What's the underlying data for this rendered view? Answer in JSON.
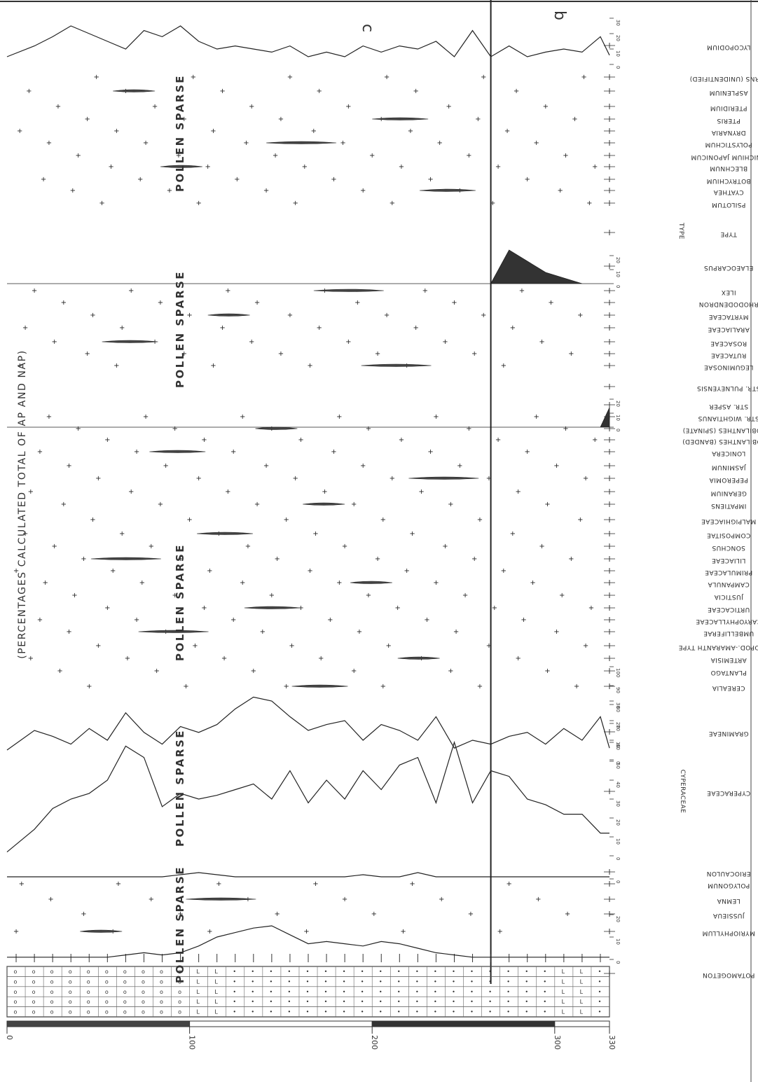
{
  "chart_data": {
    "type": "area",
    "title": "(PERCENTAGES CALCULATED TOTAL OF AP AND NAP)",
    "xlabel": "",
    "ylabel": "",
    "orientation": "rotated 90 degrees; depth axis runs along the bottom",
    "depth_axis": {
      "ticks": [
        "0",
        "100",
        "200",
        "300",
        "330"
      ],
      "range": [
        0,
        330
      ]
    },
    "zones": [
      "c",
      "b"
    ],
    "group_labels": [
      "POLLEN SPARSE",
      "POLLEN SPARSE",
      "POLLEN SPARSE",
      "POLLEN SPARSE",
      "POLLEN SPARSE",
      "TYPE",
      "CYPERACEAE"
    ],
    "depths": [
      0,
      15,
      25,
      35,
      45,
      55,
      65,
      75,
      85,
      95,
      105,
      115,
      125,
      135,
      145,
      155,
      165,
      175,
      185,
      195,
      205,
      215,
      225,
      235,
      245,
      255,
      265,
      275,
      285,
      295,
      305,
      315,
      325,
      330
    ],
    "series": [
      {
        "name": "POTAMOGETON",
        "scale_ticks": [
          "0",
          "10",
          "20"
        ],
        "values": [
          1,
          1,
          1,
          1,
          1,
          1,
          2,
          3,
          2,
          3,
          6,
          10,
          12,
          14,
          15,
          11,
          7,
          8,
          7,
          6,
          8,
          7,
          5,
          3,
          2,
          1,
          1,
          1,
          1,
          1,
          1,
          1,
          1,
          1
        ]
      },
      {
        "name": "ERIOCAULON",
        "scale_ticks": [
          "0"
        ],
        "values": [
          1,
          1,
          1,
          1,
          1,
          1,
          1,
          1,
          1,
          2,
          3,
          2,
          1,
          1,
          1,
          1,
          1,
          1,
          1,
          2,
          1,
          1,
          3,
          1,
          1,
          1,
          1,
          1,
          1,
          1,
          1,
          1,
          1,
          1
        ]
      },
      {
        "name": "CYPERACEAE",
        "scale_ticks": [
          "0",
          "10",
          "20",
          "30",
          "40",
          "50",
          "60",
          "70",
          "80",
          "90",
          "100"
        ],
        "values": [
          2,
          14,
          25,
          30,
          33,
          40,
          58,
          52,
          26,
          33,
          30,
          32,
          35,
          38,
          30,
          45,
          28,
          40,
          30,
          45,
          35,
          48,
          52,
          28,
          60,
          28,
          45,
          42,
          30,
          27,
          22,
          22,
          12,
          12
        ]
      },
      {
        "name": "GRAMINEAE",
        "scale_ticks": [
          "0",
          "10",
          "20",
          "30"
        ],
        "values": [
          5,
          15,
          12,
          8,
          16,
          10,
          24,
          14,
          8,
          17,
          14,
          18,
          26,
          32,
          30,
          22,
          15,
          18,
          20,
          10,
          18,
          15,
          10,
          22,
          6,
          10,
          8,
          12,
          14,
          8,
          16,
          10,
          22,
          6
        ]
      },
      {
        "name": "LYCOPODIUM",
        "scale_ticks": [
          "0",
          "10",
          "20",
          "30"
        ],
        "values": [
          5,
          12,
          18,
          25,
          20,
          15,
          10,
          22,
          18,
          25,
          15,
          10,
          12,
          10,
          8,
          12,
          5,
          8,
          5,
          12,
          8,
          12,
          10,
          15,
          5,
          22,
          5,
          12,
          5,
          8,
          10,
          8,
          18,
          6
        ]
      },
      {
        "name": "STR. ASPER",
        "scale_ticks": [
          "0",
          "10",
          "20"
        ],
        "values": [
          0,
          0,
          0,
          0,
          0,
          0,
          0,
          0,
          0,
          0,
          0,
          0,
          0,
          0,
          0,
          0,
          0,
          0,
          0,
          0,
          0,
          0,
          0,
          0,
          0,
          0,
          0,
          0,
          0,
          0,
          0,
          0,
          0,
          14
        ]
      },
      {
        "name": "ELAEOCARPUS",
        "scale_ticks": [
          "0",
          "10",
          "20"
        ],
        "values": [
          0,
          0,
          0,
          0,
          0,
          0,
          0,
          0,
          0,
          0,
          0,
          0,
          0,
          0,
          0,
          0,
          0,
          0,
          0,
          0,
          0,
          0,
          0,
          0,
          0,
          0,
          0,
          24,
          16,
          8,
          4,
          0,
          0,
          0
        ]
      }
    ],
    "taxa": [
      "POTAMOGETON",
      "MYRIOPHYLLUM",
      "JUSSIEUA",
      "LEMNA",
      "POLYGONUM",
      "ERIOCAULON",
      "CYPERACEAE",
      "GRAMINEAE",
      "CEREALIA",
      "PLANTAGO",
      "ARTEMISIA",
      "CHENOPOD.-AMARANTH TYPE",
      "UMBELLIFERAE",
      "CARYOPHYLLACEAE",
      "URTICACEAE",
      "JUSTICIA",
      "CAMPANULA",
      "PRIMULACEAE",
      "LILIACEAE",
      "SONCHUS",
      "COMPOSITAE",
      "MALPIGHIACEAE",
      "IMPATIENS",
      "GERANIUM",
      "PEPEROMIA",
      "JASMINUM",
      "LONICERA",
      "STROBILANTHES (BANDED)",
      "STROBILANTHES (SPINATE)",
      "STR. WIGHTIANUS",
      "STR. ASPER",
      "STR. PULNEYENSIS",
      "LEGUMINOSAE",
      "RUTACEAE",
      "ROSACEAE",
      "ARALIACEAE",
      "MYRTACEAE",
      "RHODODENDRON",
      "ILEX",
      "ELAEOCARPUS",
      "TYPE",
      "PSILOTUM",
      "CYATHEA",
      "BOTRYCHIUM",
      "BLECHNUM",
      "ONICHIUM JAPONICUM",
      "POLYSTICHUM",
      "DRYNARIA",
      "PTERIS",
      "PTERIDIUM",
      "ASPLENIUM",
      "FERNS (UNIDENTIFIED)",
      "LYCOPODIUM"
    ]
  }
}
